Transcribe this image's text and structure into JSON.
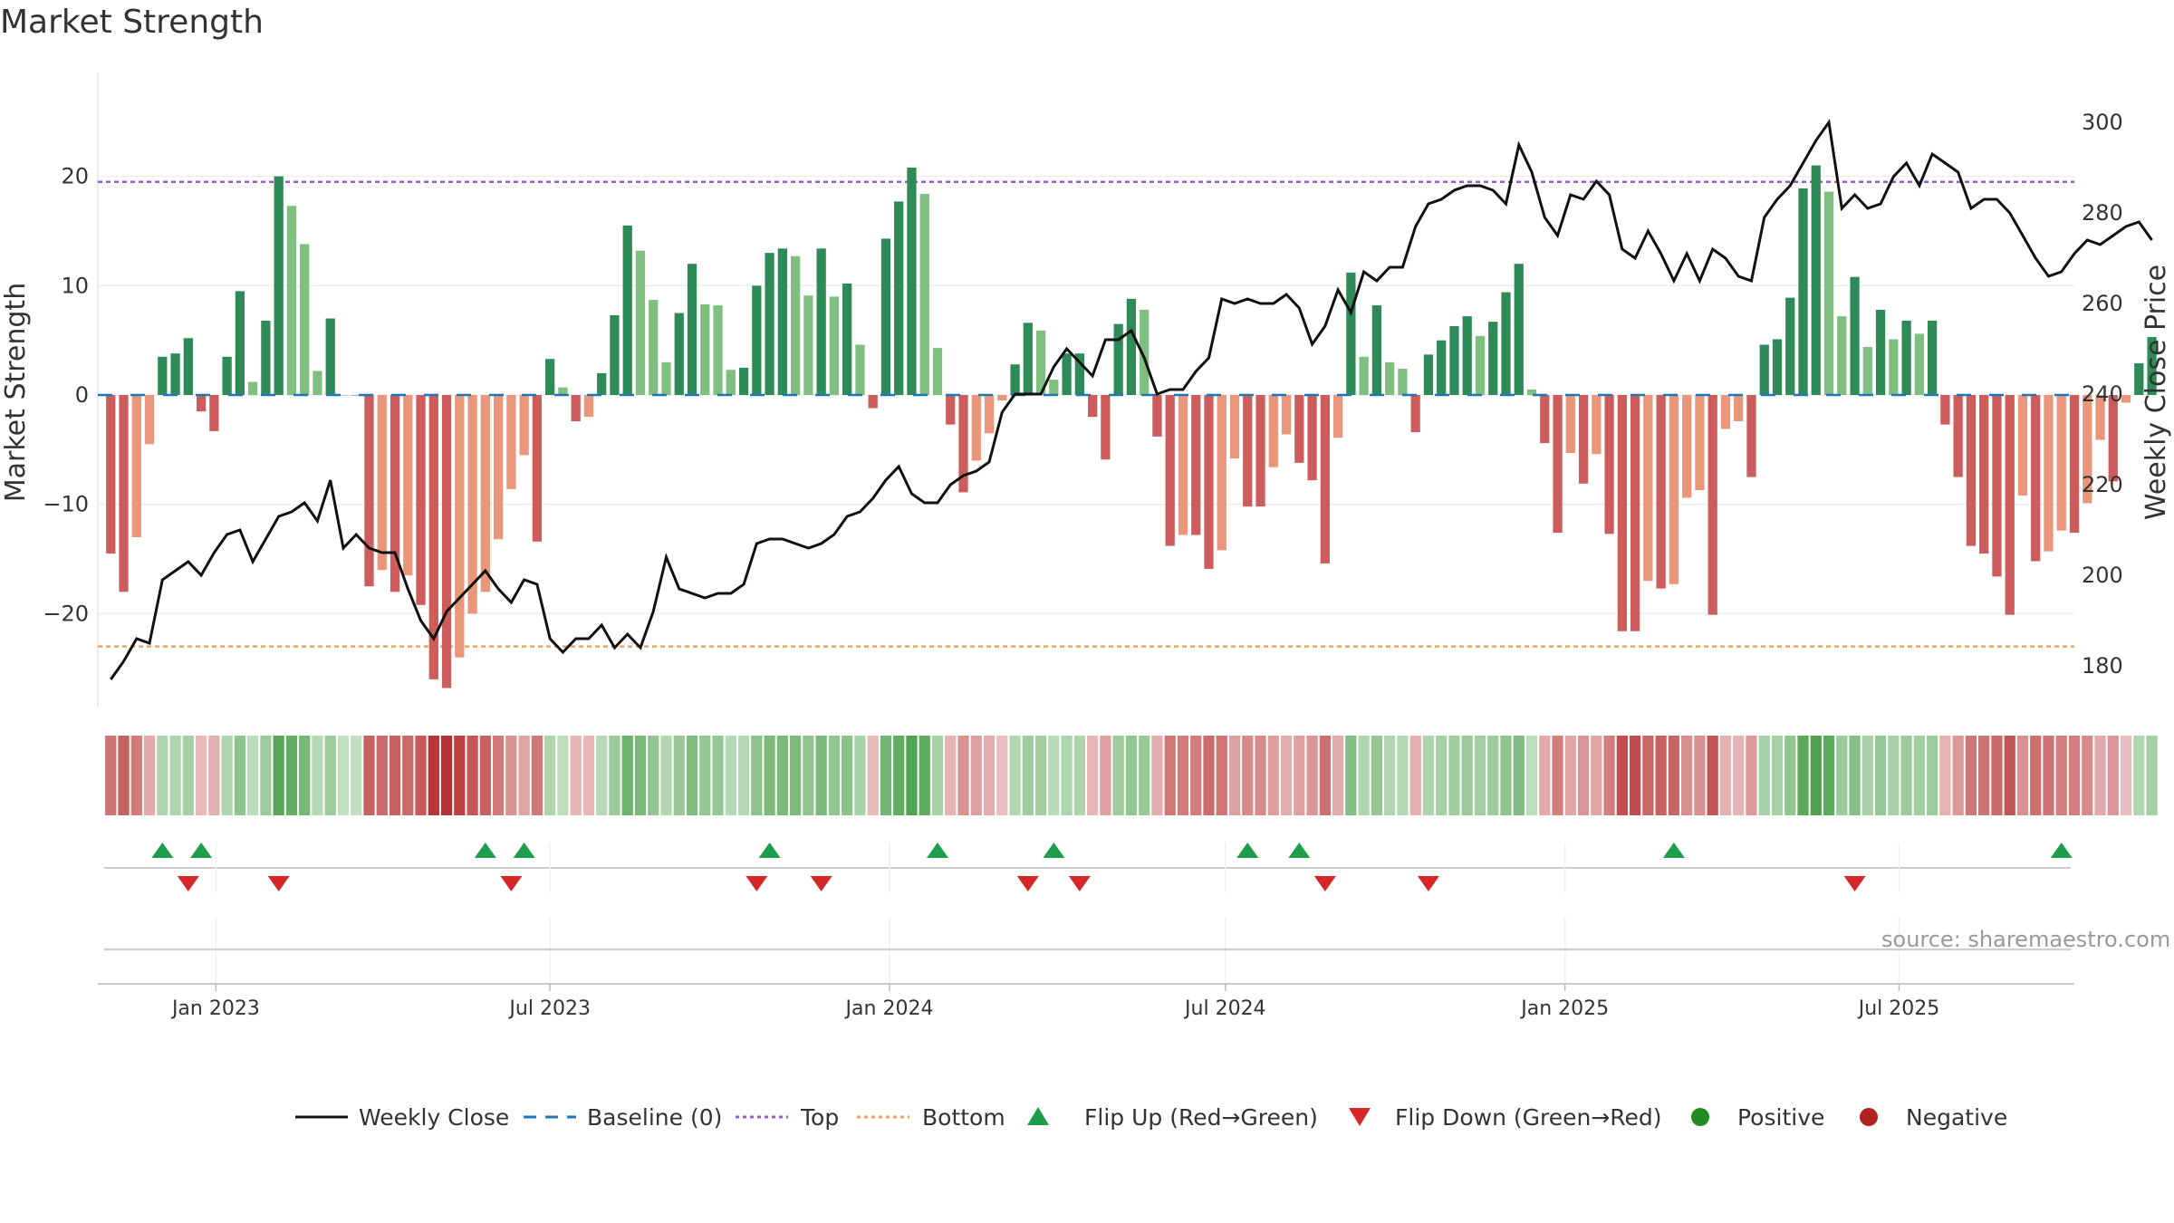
{
  "title": "Market Strength",
  "source": "source: sharemaestro.com",
  "colors": {
    "strong_green": "#2e8b57",
    "light_green": "#7fbf7f",
    "strong_red": "#cd5c5c",
    "light_red": "#e9967a",
    "close_line": "#111111",
    "baseline": "#1f77b4",
    "top": "#9b59d0",
    "bottom": "#f4a261",
    "flip_up": "#1e9e4a",
    "flip_down": "#d62728",
    "positive": "#228b22",
    "negative": "#b22222"
  },
  "chart_data": {
    "type": "bar",
    "title": "Market Strength",
    "ylabel": "Market Strength",
    "y2label": "Weekly Close Price",
    "ylim": [
      -28.5,
      29.5
    ],
    "y2lim": [
      171,
      311
    ],
    "yticks": [
      -20,
      -10,
      0,
      10,
      20
    ],
    "y2ticks": [
      180,
      200,
      220,
      240,
      260,
      280,
      300
    ],
    "x_range": [
      "2022-10-29",
      "2025-10-04"
    ],
    "x_ticks": [
      {
        "date": "2023-01-01",
        "label": "Jan 2023"
      },
      {
        "date": "2023-07-01",
        "label": "Jul 2023"
      },
      {
        "date": "2024-01-01",
        "label": "Jan 2024"
      },
      {
        "date": "2024-07-01",
        "label": "Jul 2024"
      },
      {
        "date": "2025-01-01",
        "label": "Jan 2025"
      },
      {
        "date": "2025-07-01",
        "label": "Jul 2025"
      }
    ],
    "first_week": "2022-11-05",
    "week_step_days": 7,
    "top_line": 19.5,
    "bottom_line": -23,
    "baseline": 0,
    "strength": [
      -14.5,
      -18,
      -13,
      -4.5,
      3.5,
      3.8,
      5.2,
      -1.5,
      -3.3,
      3.5,
      9.5,
      1.2,
      6.8,
      20,
      17.3,
      13.8,
      2.2,
      7,
      0,
      0,
      -17.5,
      -16,
      -18,
      -16.5,
      -19.2,
      -26,
      -26.8,
      -24,
      -20,
      -18,
      -13.2,
      -8.6,
      -5.5,
      -13.4,
      3.3,
      0.7,
      -2.4,
      -2,
      2,
      7.3,
      15.5,
      13.2,
      8.7,
      3,
      7.5,
      12,
      8.3,
      8.2,
      2.3,
      2.5,
      10,
      13,
      13.4,
      12.7,
      9.1,
      13.4,
      9,
      10.2,
      4.6,
      -1.2,
      14.3,
      17.7,
      20.8,
      18.4,
      4.3,
      -2.7,
      -8.9,
      -6,
      -3.5,
      -0.5,
      2.8,
      6.6,
      5.9,
      1.4,
      3.8,
      3.8,
      -2,
      -5.9,
      6.5,
      8.8,
      7.8,
      -3.8,
      -13.8,
      -12.8,
      -12.8,
      -15.9,
      -14.2,
      -5.8,
      -10.2,
      -10.2,
      -6.6,
      -3.6,
      -6.2,
      -7.8,
      -15.4,
      -3.9,
      11.2,
      3.5,
      8.2,
      3,
      2.4,
      -3.4,
      3.7,
      5,
      6.3,
      7.2,
      5.4,
      6.7,
      9.4,
      12,
      0.5,
      -4.4,
      -12.6,
      -5.3,
      -8.1,
      -5.4,
      -12.7,
      -21.6,
      -21.6,
      -17,
      -17.7,
      -17.3,
      -9.4,
      -8.7,
      -20.1,
      -3.1,
      -2.4,
      -7.5,
      4.6,
      5.1,
      8.9,
      18.9,
      21,
      18.6,
      7.2,
      10.8,
      4.4,
      7.8,
      5.1,
      6.8,
      5.6,
      6.8,
      -2.7,
      -7.5,
      -13.8,
      -14.5,
      -16.6,
      -20.1,
      -9.2,
      -15.2,
      -14.3,
      -12.4,
      -12.6,
      -9.9,
      -4.1,
      -7.9,
      -0.7,
      2.9,
      5.3
    ],
    "weekly_close": [
      177,
      181,
      186,
      185,
      199,
      201,
      203,
      200,
      205,
      209,
      210,
      203,
      208,
      213,
      214,
      216,
      212,
      221,
      206,
      209,
      206,
      205,
      205,
      197,
      190,
      186,
      192,
      195,
      198,
      201,
      197,
      194,
      199,
      198,
      186,
      183,
      186,
      186,
      189,
      184,
      187,
      184,
      192,
      204,
      197,
      196,
      195,
      196,
      196,
      198,
      207,
      208,
      208,
      207,
      206,
      207,
      209,
      213,
      214,
      217,
      221,
      224,
      218,
      216,
      216,
      220,
      222,
      223,
      225,
      236,
      240,
      240,
      240,
      246,
      250,
      247,
      244,
      252,
      252,
      254,
      248,
      240,
      241,
      241,
      245,
      248,
      261,
      260,
      261,
      260,
      260,
      262,
      259,
      251,
      255,
      263,
      258,
      267,
      265,
      268,
      268,
      277,
      282,
      283,
      285,
      286,
      286,
      285,
      282,
      295,
      289,
      279,
      275,
      284,
      283,
      287,
      284,
      272,
      270,
      276,
      271,
      265,
      271,
      265,
      272,
      270,
      266,
      265,
      279,
      283,
      286,
      291,
      296,
      300,
      281,
      284,
      281,
      282,
      288,
      291,
      286,
      293,
      291,
      289,
      281,
      283,
      283,
      280,
      275,
      270,
      266,
      267,
      271,
      274,
      273,
      275,
      277,
      278,
      274
    ],
    "flips_up": [
      "2022-12-03",
      "2022-12-24",
      "2023-05-27",
      "2023-06-17",
      "2023-10-28",
      "2024-01-27",
      "2024-03-30",
      "2024-07-13",
      "2024-08-10",
      "2025-03-01",
      "2025-09-27"
    ],
    "flips_down": [
      "2022-12-17",
      "2023-02-04",
      "2023-06-10",
      "2023-10-21",
      "2023-11-25",
      "2024-03-16",
      "2024-04-13",
      "2024-08-24",
      "2024-10-19",
      "2025-06-07"
    ]
  },
  "x_tick_labels": {
    "t0": "Jan 2023",
    "t1": "Jul 2023",
    "t2": "Jan 2024",
    "t3": "Jul 2024",
    "t4": "Jan 2025",
    "t5": "Jul 2025"
  },
  "legend": {
    "weekly_close": "Weekly Close",
    "baseline": "Baseline (0)",
    "top": "Top",
    "bottom": "Bottom",
    "flip_up": "Flip Up (Red→Green)",
    "flip_down": "Flip Down (Green→Red)",
    "positive": "Positive",
    "negative": "Negative"
  }
}
